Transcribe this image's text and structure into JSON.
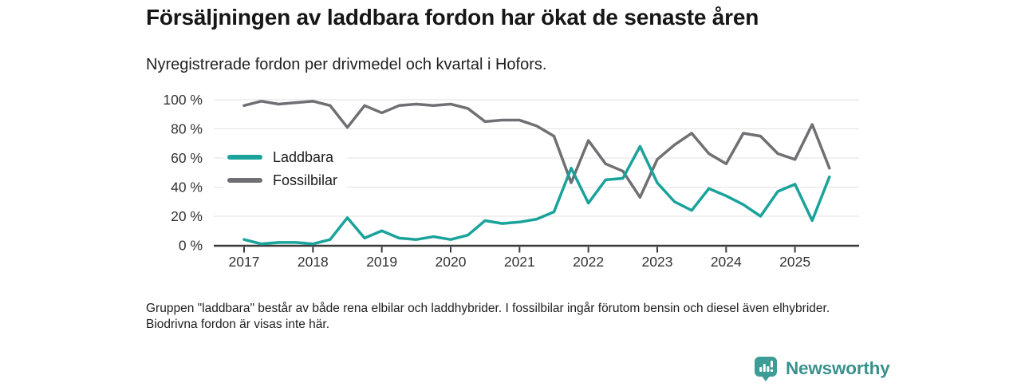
{
  "header": {
    "title": "Försäljningen av laddbara fordon har ökat de senaste åren",
    "subtitle": "Nyregistrerade fordon per drivmedel och kvartal i Hofors."
  },
  "chart_data": {
    "type": "line",
    "x_unit": "quarter",
    "x_start": "2017 Q1",
    "x_end": "2025 Q3",
    "year_ticks": [
      "2017",
      "2018",
      "2019",
      "2020",
      "2021",
      "2022",
      "2023",
      "2024",
      "2025"
    ],
    "y_ticks_percent": [
      0,
      20,
      40,
      60,
      80,
      100
    ],
    "y_tick_labels": [
      "0 %",
      "20 %",
      "40 %",
      "60 %",
      "80 %",
      "100 %"
    ],
    "ylim": [
      0,
      100
    ],
    "grid": true,
    "legend_position": "inside-left",
    "series": [
      {
        "name": "Laddbara",
        "color": "#19a39b",
        "values": [
          4,
          1,
          2,
          2,
          1,
          4,
          19,
          5,
          10,
          5,
          4,
          6,
          4,
          7,
          17,
          15,
          16,
          18,
          23,
          53,
          29,
          45,
          46,
          68,
          43,
          30,
          24,
          39,
          34,
          28,
          20,
          37,
          42,
          17,
          47
        ]
      },
      {
        "name": "Fossilbilar",
        "color": "#6f6f74",
        "values": [
          96,
          99,
          97,
          98,
          99,
          96,
          81,
          96,
          91,
          96,
          97,
          96,
          97,
          94,
          85,
          86,
          86,
          82,
          75,
          43,
          72,
          56,
          51,
          33,
          59,
          69,
          77,
          63,
          56,
          77,
          75,
          63,
          59,
          83,
          53
        ]
      }
    ],
    "axis_color": "#3a3a3a",
    "gridline_color": "#e1e1e1",
    "tick_label_color": "#333333"
  },
  "footnote": "Gruppen \"laddbara\" består av både rena elbilar och laddhybrider. I fossilbilar ingår förutom bensin och diesel även elhybrider. Biodrivna fordon är visas inte här.",
  "logo": {
    "text": "Newsworthy",
    "color": "#3e9c96",
    "icon": "newsworthy-pin-barchart-icon"
  }
}
